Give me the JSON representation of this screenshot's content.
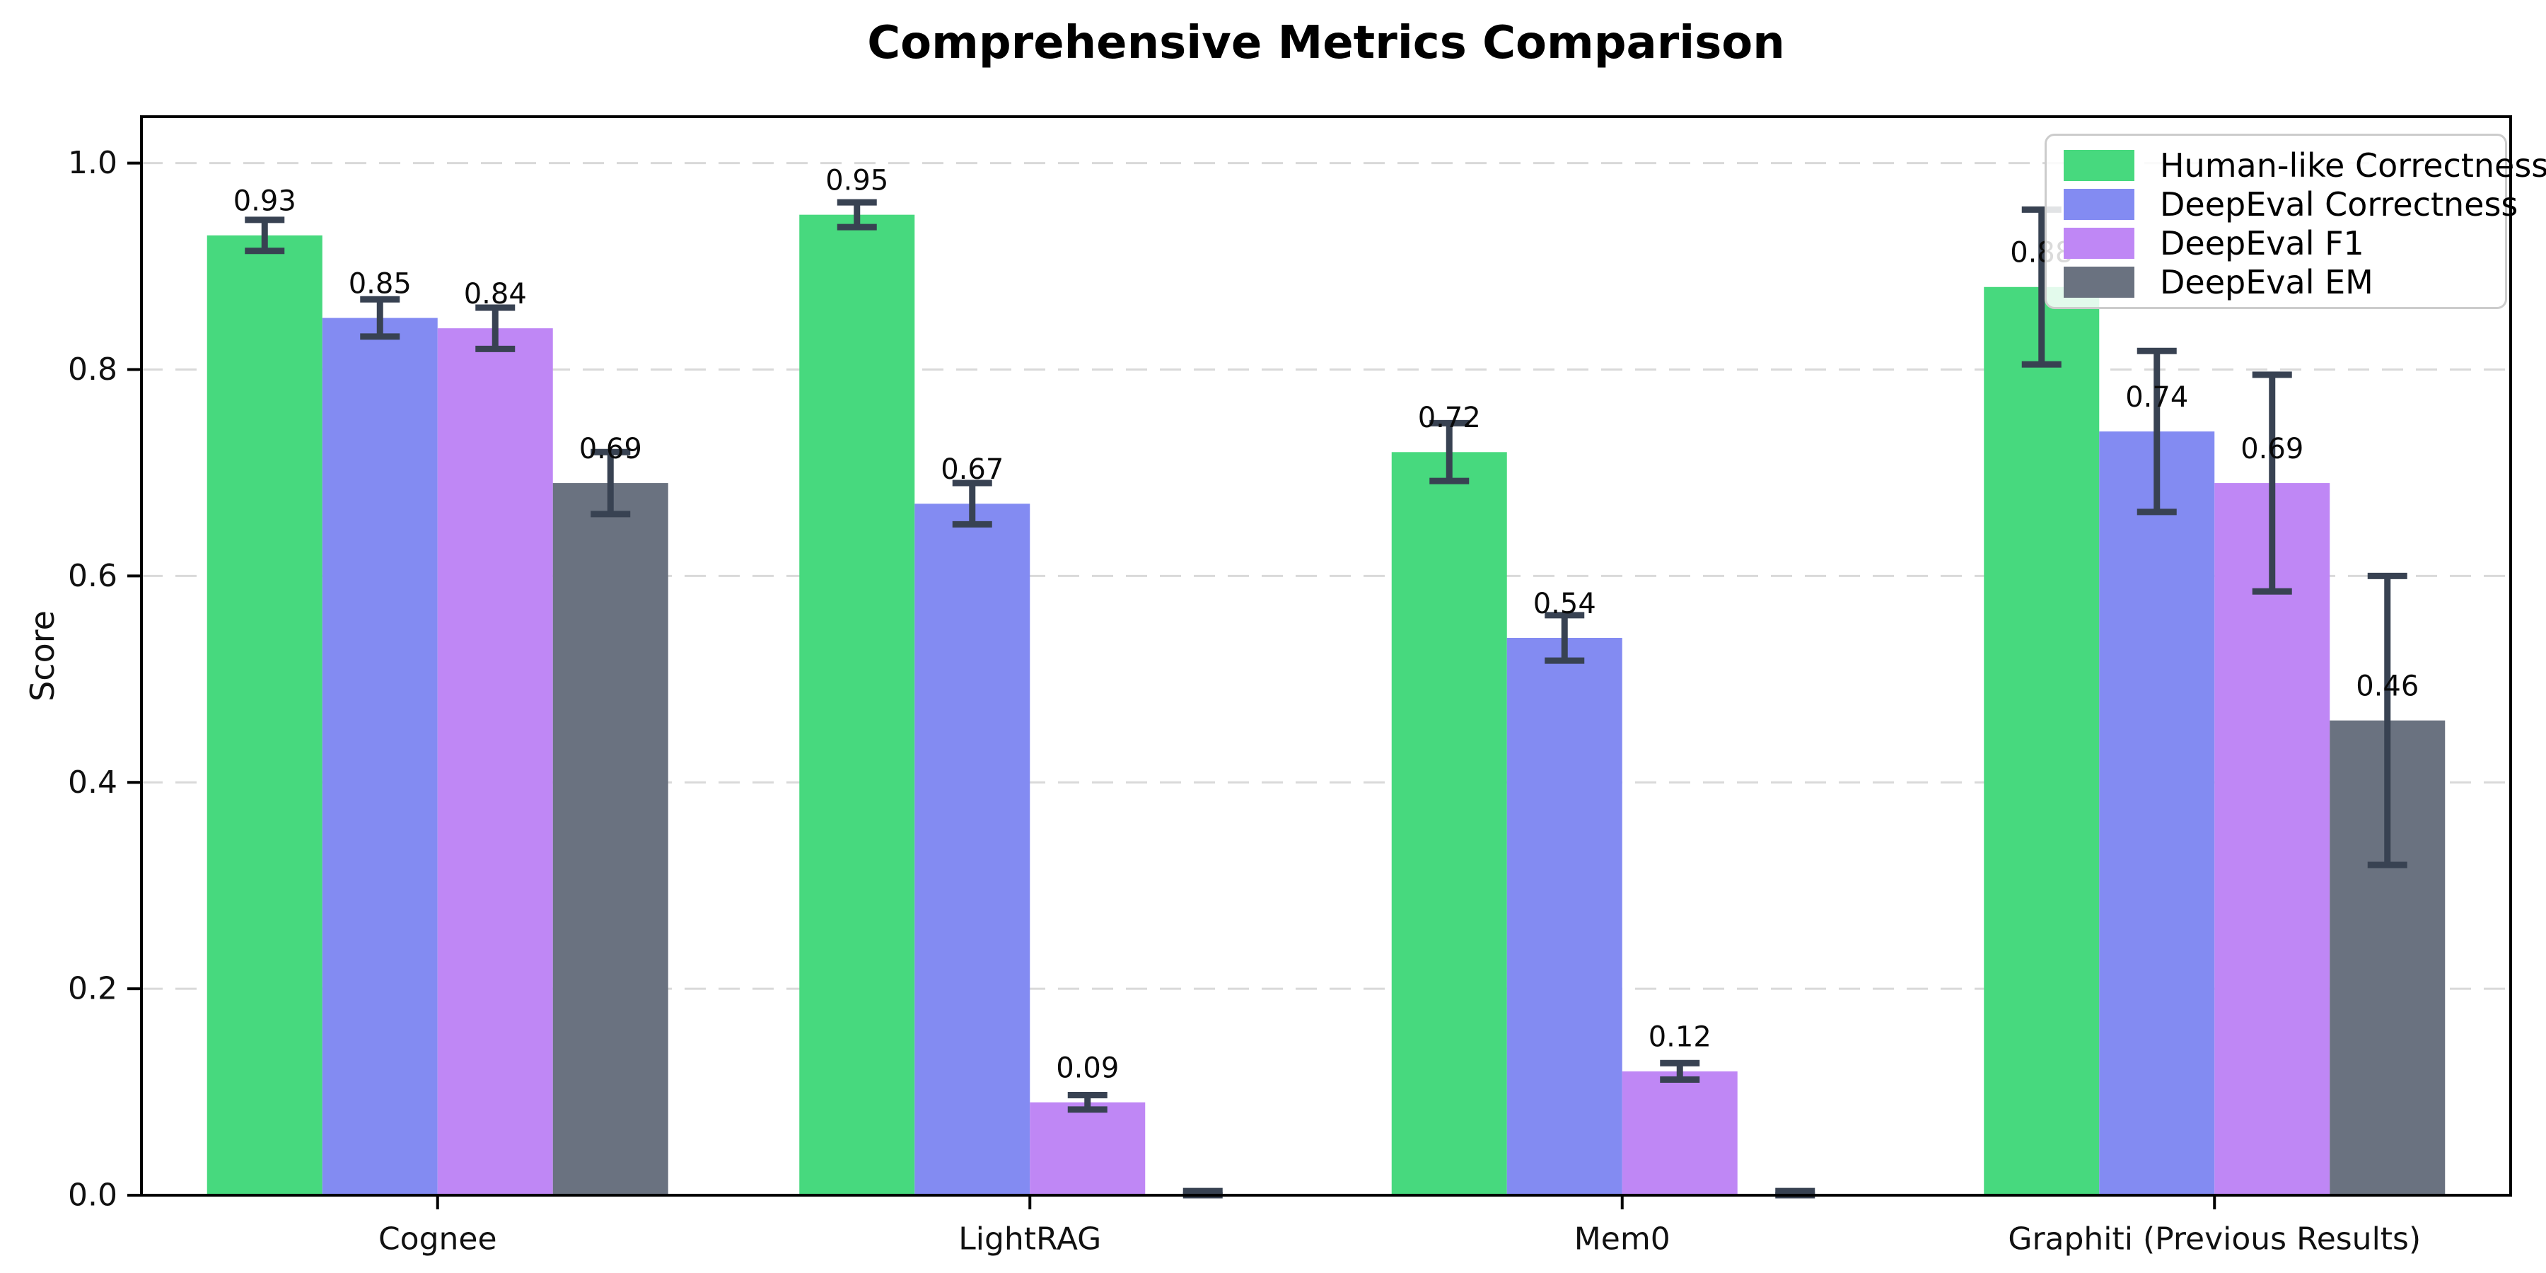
{
  "title": "Comprehensive Metrics Comparison",
  "chart_data": {
    "type": "bar",
    "title": "Comprehensive Metrics Comparison",
    "ylabel": "Score",
    "xlabel": "",
    "categories": [
      "Cognee",
      "LightRAG",
      "Mem0",
      "Graphiti (Previous Results)"
    ],
    "series": [
      {
        "name": "Human-like Correctness",
        "color": "#47d97e",
        "values": [
          0.93,
          0.95,
          0.72,
          0.88
        ],
        "errors": [
          0.015,
          0.012,
          0.028,
          0.075
        ]
      },
      {
        "name": "DeepEval Correctness",
        "color": "#838bf2",
        "values": [
          0.85,
          0.67,
          0.54,
          0.74
        ],
        "errors": [
          0.018,
          0.02,
          0.022,
          0.078
        ]
      },
      {
        "name": "DeepEval F1",
        "color": "#bf87f5",
        "values": [
          0.84,
          0.09,
          0.12,
          0.69
        ],
        "errors": [
          0.02,
          0.007,
          0.008,
          0.105
        ]
      },
      {
        "name": "DeepEval EM",
        "color": "#6a7280",
        "values": [
          0.69,
          0.0,
          0.0,
          0.46
        ],
        "errors": [
          0.03,
          0.004,
          0.004,
          0.14
        ]
      }
    ],
    "yticks": [
      0.0,
      0.2,
      0.4,
      0.6,
      0.8,
      1.0
    ],
    "ylim": [
      0,
      1.045
    ],
    "bar_value_labels": [
      [
        "0.93",
        "0.95",
        "0.72",
        "0.88"
      ],
      [
        "0.85",
        "0.67",
        "0.54",
        "0.74"
      ],
      [
        "0.84",
        "0.09",
        "0.12",
        "0.69"
      ],
      [
        "0.69",
        "",
        "",
        "0.46"
      ]
    ],
    "grid": "horizontal-dashed",
    "legend_position": "upper-right",
    "error_bar_color": "#384252",
    "grid_color": "#d9d9d9",
    "axis_color": "#000000"
  }
}
